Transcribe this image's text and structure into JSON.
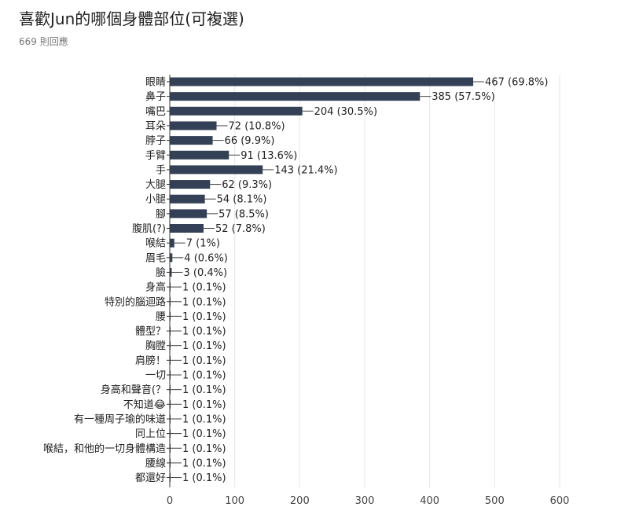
{
  "header": {
    "title": "喜歡Jun的哪個身體部位(可複選)",
    "response_count": "669 則回應"
  },
  "colors": {
    "bar": "#344055",
    "grid": "#e6e6e6",
    "axis": "#333333",
    "connector": "#444444"
  },
  "chart_data": {
    "type": "bar",
    "orientation": "horizontal",
    "title": "喜歡Jun的哪個身體部位(可複選)",
    "subtitle": "669 則回應",
    "categories": [
      "眼睛",
      "鼻子",
      "嘴巴",
      "耳朵",
      "脖子",
      "手臂",
      "手",
      "大腿",
      "小腿",
      "腳",
      "腹肌(?)",
      "喉結",
      "眉毛",
      "臉",
      "身高",
      "特別的腦迴路",
      "腰",
      "體型？",
      "胸膛",
      "肩膀！",
      "一切",
      "身高和聲音(？",
      "不知道😂",
      "有一種周子瑜的味道",
      "同上位",
      "喉結，和他的一切身體構造",
      "腰線",
      "都還好"
    ],
    "values": [
      467,
      385,
      204,
      72,
      66,
      91,
      143,
      62,
      54,
      57,
      52,
      7,
      4,
      3,
      1,
      1,
      1,
      1,
      1,
      1,
      1,
      1,
      1,
      1,
      1,
      1,
      1,
      1
    ],
    "value_labels": [
      "467 (69.8%)",
      "385 (57.5%)",
      "204 (30.5%)",
      "72 (10.8%)",
      "66 (9.9%)",
      "91 (13.6%)",
      "143 (21.4%)",
      "62 (9.3%)",
      "54 (8.1%)",
      "57 (8.5%)",
      "52 (7.8%)",
      "7 (1%)",
      "4 (0.6%)",
      "3 (0.4%)",
      "1 (0.1%)",
      "1 (0.1%)",
      "1 (0.1%)",
      "1 (0.1%)",
      "1 (0.1%)",
      "1 (0.1%)",
      "1 (0.1%)",
      "1 (0.1%)",
      "1 (0.1%)",
      "1 (0.1%)",
      "1 (0.1%)",
      "1 (0.1%)",
      "1 (0.1%)",
      "1 (0.1%)"
    ],
    "xlim": [
      0,
      600
    ],
    "xticks": [
      0,
      100,
      200,
      300,
      400,
      500,
      600
    ],
    "grid": true,
    "legend": "none"
  }
}
